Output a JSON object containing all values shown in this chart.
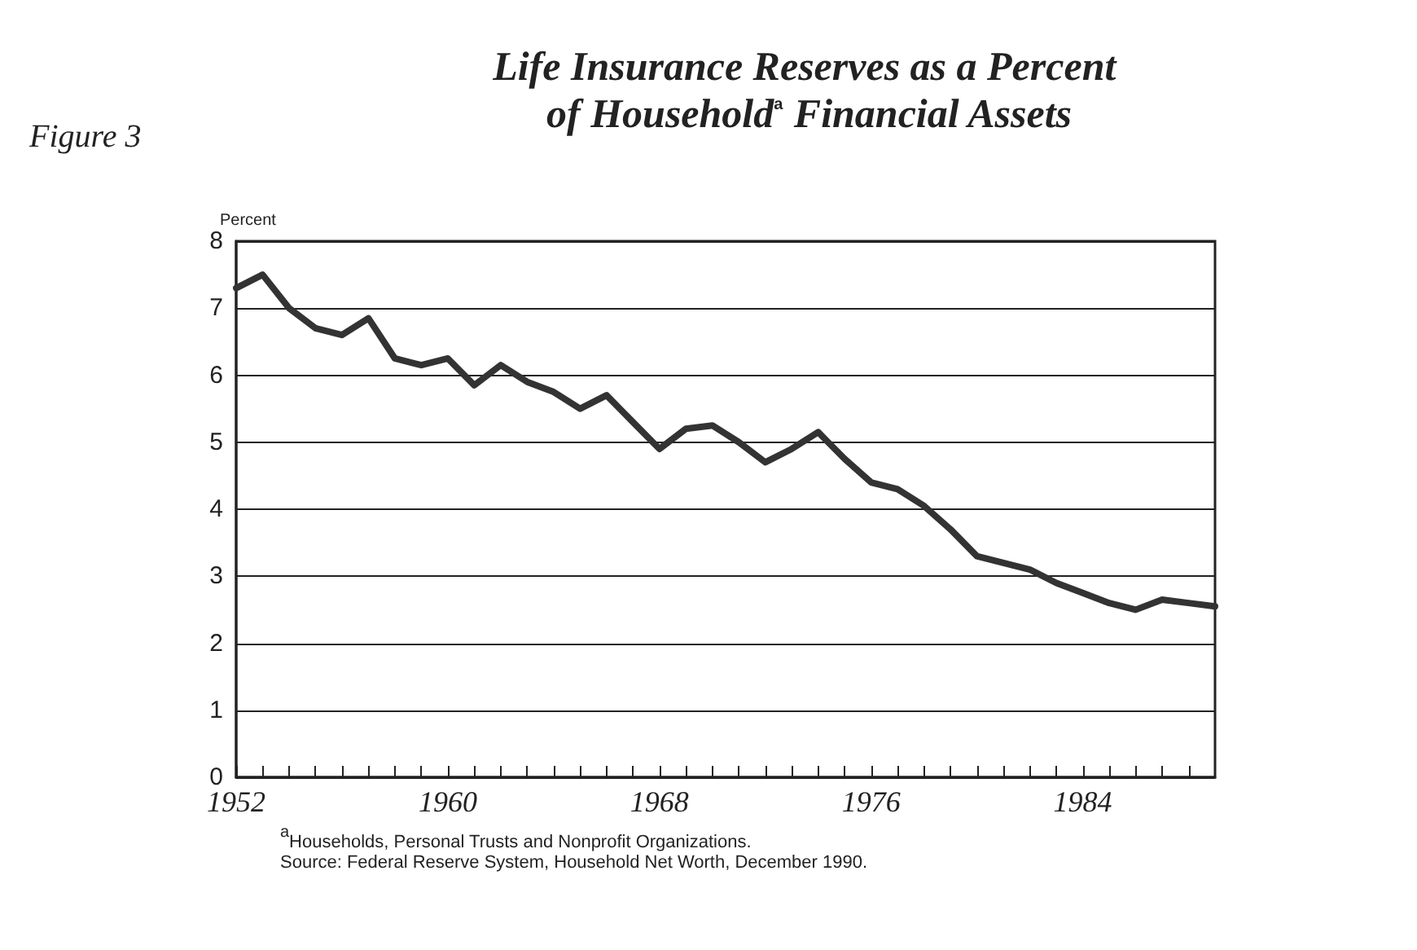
{
  "chart_data": {
    "type": "line",
    "title": "Life Insurance Reserves as a Percent of Household$^{a}$ Financial Assets",
    "ylabel": "Percent",
    "annotations": [
      "Figure 3",
      "$^{a}$Households, Personal Trusts and Nonprofit Organizations.",
      "Source: Federal Reserve System, Household Net Worth, December 1990."
    ],
    "x": [
      1952,
      1953,
      1954,
      1955,
      1956,
      1957,
      1958,
      1959,
      1960,
      1961,
      1962,
      1963,
      1964,
      1965,
      1966,
      1967,
      1968,
      1969,
      1970,
      1971,
      1972,
      1973,
      1974,
      1975,
      1976,
      1977,
      1978,
      1979,
      1980,
      1981,
      1982,
      1983,
      1984,
      1985,
      1986,
      1987,
      1988,
      1989
    ],
    "series": [
      {
        "color": "#333333",
        "values": [
          7.3,
          7.5,
          7.0,
          6.7,
          6.6,
          6.85,
          6.25,
          6.15,
          6.25,
          5.85,
          6.15,
          5.9,
          5.75,
          5.5,
          5.7,
          5.3,
          4.9,
          5.2,
          5.25,
          5.0,
          4.7,
          4.9,
          5.15,
          4.75,
          4.4,
          4.3,
          4.05,
          3.7,
          3.3,
          3.2,
          3.1,
          2.9,
          2.75,
          2.6,
          2.5,
          2.65,
          2.6,
          2.55
        ]
      }
    ],
    "xlim": [
      1952,
      1989
    ],
    "xticks": [
      1952,
      {
        "value": 1953,
        "label": null
      },
      {
        "value": 1954,
        "label": null
      },
      {
        "value": 1955,
        "label": null
      },
      {
        "value": 1956,
        "label": null
      },
      {
        "value": 1957,
        "label": null
      },
      {
        "value": 1958,
        "label": null
      },
      {
        "value": 1959,
        "label": null
      },
      1960,
      {
        "value": 1961,
        "label": null
      },
      {
        "value": 1962,
        "label": null
      },
      {
        "value": 1963,
        "label": null
      },
      {
        "value": 1964,
        "label": null
      },
      {
        "value": 1965,
        "label": null
      },
      {
        "value": 1966,
        "label": null
      },
      {
        "value": 1967,
        "label": null
      },
      1968,
      {
        "value": 1969,
        "label": null
      },
      {
        "value": 1970,
        "label": null
      },
      {
        "value": 1971,
        "label": null
      },
      {
        "value": 1972,
        "label": null
      },
      {
        "value": 1973,
        "label": null
      },
      {
        "value": 1974,
        "label": null
      },
      {
        "value": 1975,
        "label": null
      },
      1976,
      {
        "value": 1977,
        "label": null
      },
      {
        "value": 1978,
        "label": null
      },
      {
        "value": 1979,
        "label": null
      },
      {
        "value": 1980,
        "label": null
      },
      {
        "value": 1981,
        "label": null
      },
      {
        "value": 1982,
        "label": null
      },
      {
        "value": 1983,
        "label": null
      },
      1984,
      {
        "value": 1985,
        "label": null
      },
      {
        "value": 1986,
        "label": null
      },
      {
        "value": 1987,
        "label": null
      },
      {
        "value": 1988,
        "label": null
      }
    ],
    "ylim": [
      0,
      8
    ],
    "yticks": [
      0,
      1,
      2,
      3,
      4,
      5,
      6,
      7,
      8
    ],
    "grid": "y",
    "marker": "none",
    "line_style": "solid"
  }
}
